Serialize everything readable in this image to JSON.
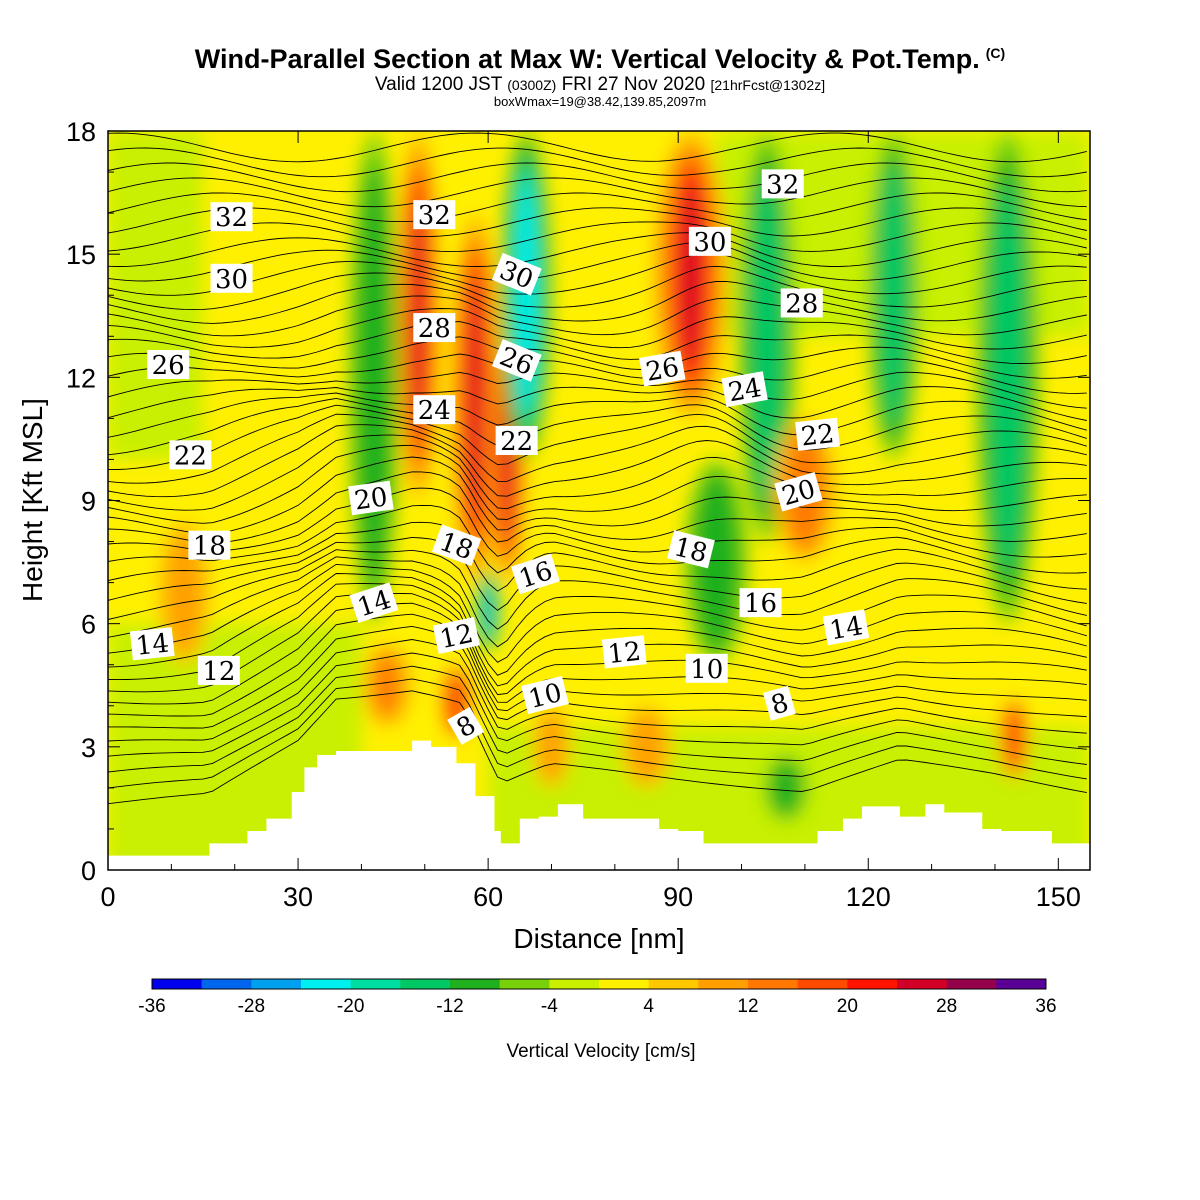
{
  "header": {
    "title": "Wind-Parallel Section at Max W: Vertical Velocity & Pot.Temp.",
    "copyright": "(C)",
    "valid_main": "Valid 1200 JST",
    "valid_utc": "(0300Z)",
    "valid_date": "FRI 27 Nov 2020",
    "forecast": "[21hrFcst@1302z]",
    "box_note": "boxWmax=19@38.42,139.85,2097m"
  },
  "chart_data": {
    "type": "heatmap",
    "title": "Wind-Parallel Section at Max W: Vertical Velocity & Pot.Temp.",
    "xlabel": "Distance [nm]",
    "ylabel": "Height [Kft MSL]",
    "xlim": [
      0,
      155
    ],
    "ylim": [
      0,
      18
    ],
    "xticks": [
      0,
      30,
      60,
      90,
      120,
      150
    ],
    "yticks": [
      0,
      3,
      6,
      9,
      12,
      15,
      18
    ],
    "colorbar": {
      "label": "Vertical Velocity [cm/s]",
      "tick_labels": [
        "-36",
        "-28",
        "-20",
        "-12",
        "-4",
        "4",
        "12",
        "20",
        "28",
        "36"
      ],
      "levels": [
        -36,
        -32,
        -28,
        -24,
        -20,
        -16,
        -12,
        -8,
        -4,
        0,
        4,
        8,
        12,
        16,
        20,
        24,
        28,
        32,
        36
      ],
      "colors": [
        "#0000ee",
        "#0066ee",
        "#00a0f0",
        "#00f0f0",
        "#00dca0",
        "#00c864",
        "#1fb01f",
        "#78d20a",
        "#c8f000",
        "#fff000",
        "#ffc800",
        "#ffa000",
        "#ff7800",
        "#ff4b00",
        "#ff1400",
        "#d20028",
        "#96004b",
        "#5a0096"
      ]
    },
    "velocity_features": [
      {
        "x": 49,
        "y0": 9,
        "y1": 18,
        "w": 3.5,
        "value": 26
      },
      {
        "x": 58,
        "y0": 7,
        "y1": 16,
        "w": 4,
        "value": 28
      },
      {
        "x": 63,
        "y0": 7,
        "y1": 13,
        "w": 3,
        "value": 24
      },
      {
        "x": 92,
        "y0": 11,
        "y1": 18,
        "w": 6,
        "value": 30
      },
      {
        "x": 42,
        "y0": 6,
        "y1": 18,
        "w": 4,
        "value": -12
      },
      {
        "x": 66,
        "y0": 10,
        "y1": 18,
        "w": 4,
        "value": -24
      },
      {
        "x": 104,
        "y0": 8,
        "y1": 18,
        "w": 4.5,
        "value": -14
      },
      {
        "x": 124,
        "y0": 10,
        "y1": 18,
        "w": 4,
        "value": -13
      },
      {
        "x": 142,
        "y0": 6,
        "y1": 18,
        "w": 5,
        "value": -16
      },
      {
        "x": 60,
        "y0": 5.3,
        "y1": 7.3,
        "w": 1.8,
        "value": -28
      },
      {
        "x": 96,
        "y0": 5,
        "y1": 10,
        "w": 5,
        "value": -11
      },
      {
        "x": 110,
        "y0": 7.5,
        "y1": 11,
        "w": 5,
        "value": 15
      },
      {
        "x": 12,
        "y0": 5,
        "y1": 8.5,
        "w": 4,
        "value": 10
      },
      {
        "x": 55,
        "y0": 3.2,
        "y1": 5,
        "w": 2.5,
        "value": 22
      },
      {
        "x": 44,
        "y0": 3.5,
        "y1": 5.5,
        "w": 4,
        "value": 12
      },
      {
        "x": 143,
        "y0": 2.2,
        "y1": 4.2,
        "w": 2.5,
        "value": 20
      },
      {
        "x": 107,
        "y0": 1.2,
        "y1": 2.8,
        "w": 3.5,
        "value": -10
      },
      {
        "x": 85,
        "y0": 2,
        "y1": 4,
        "w": 4,
        "value": 10
      },
      {
        "x": 70,
        "y0": 2,
        "y1": 4,
        "w": 3,
        "value": 10
      }
    ],
    "terrain_x": [
      0,
      16,
      16,
      22,
      22,
      25,
      25,
      29,
      29,
      31,
      31,
      33,
      33,
      36,
      36,
      48,
      48,
      51,
      51,
      55,
      55,
      58,
      58,
      61,
      61,
      62,
      62,
      64,
      64,
      65,
      65,
      68,
      68,
      71,
      71,
      75,
      75,
      87,
      87,
      90,
      90,
      94,
      94,
      100,
      100,
      112,
      112,
      116,
      116,
      119,
      119,
      125,
      125,
      129,
      129,
      132,
      132,
      138,
      138,
      141,
      141,
      149,
      149,
      155
    ],
    "terrain_y": [
      0.35,
      0.35,
      0.65,
      0.65,
      0.95,
      0.95,
      1.25,
      1.25,
      1.9,
      1.9,
      2.5,
      2.5,
      2.8,
      2.8,
      2.9,
      2.9,
      3.15,
      3.15,
      3.0,
      3.0,
      2.6,
      2.6,
      1.8,
      1.8,
      0.95,
      0.95,
      0.65,
      0.65,
      0.65,
      0.65,
      1.25,
      1.25,
      1.3,
      1.3,
      1.6,
      1.6,
      1.25,
      1.25,
      1.0,
      1.0,
      0.95,
      0.95,
      0.65,
      0.65,
      0.65,
      0.65,
      0.95,
      0.95,
      1.25,
      1.25,
      1.55,
      1.55,
      1.3,
      1.3,
      1.6,
      1.6,
      1.4,
      1.4,
      1.0,
      1.0,
      0.95,
      0.95,
      0.65,
      0.65
    ],
    "potential_temperature_labels": [
      {
        "text": "32",
        "x": 19.5,
        "y": 15.9,
        "rot": 0
      },
      {
        "text": "30",
        "x": 19.5,
        "y": 14.4,
        "rot": 0
      },
      {
        "text": "26",
        "x": 9.5,
        "y": 12.3,
        "rot": 0
      },
      {
        "text": "22",
        "x": 13,
        "y": 10.1,
        "rot": 0
      },
      {
        "text": "18",
        "x": 16,
        "y": 7.9,
        "rot": 0
      },
      {
        "text": "14",
        "x": 7,
        "y": 5.5,
        "rot": -6
      },
      {
        "text": "12",
        "x": 17.5,
        "y": 4.85,
        "rot": 0
      },
      {
        "text": "32",
        "x": 51.5,
        "y": 15.95,
        "rot": 0
      },
      {
        "text": "28",
        "x": 51.5,
        "y": 13.2,
        "rot": 0
      },
      {
        "text": "24",
        "x": 51.5,
        "y": 11.2,
        "rot": 0
      },
      {
        "text": "20",
        "x": 41.5,
        "y": 9.05,
        "rot": -8
      },
      {
        "text": "18",
        "x": 55,
        "y": 7.9,
        "rot": 20
      },
      {
        "text": "14",
        "x": 42,
        "y": 6.5,
        "rot": -18
      },
      {
        "text": "12",
        "x": 55,
        "y": 5.7,
        "rot": -12
      },
      {
        "text": "8",
        "x": 56.5,
        "y": 3.5,
        "rot": -30
      },
      {
        "text": "30",
        "x": 64.5,
        "y": 14.5,
        "rot": 22
      },
      {
        "text": "26",
        "x": 64.5,
        "y": 12.4,
        "rot": 22
      },
      {
        "text": "22",
        "x": 64.5,
        "y": 10.45,
        "rot": 0
      },
      {
        "text": "16",
        "x": 67.5,
        "y": 7.2,
        "rot": -18
      },
      {
        "text": "10",
        "x": 69,
        "y": 4.25,
        "rot": -14
      },
      {
        "text": "12",
        "x": 81.5,
        "y": 5.3,
        "rot": -6
      },
      {
        "text": "26",
        "x": 87.5,
        "y": 12.2,
        "rot": -10
      },
      {
        "text": "30",
        "x": 95,
        "y": 15.3,
        "rot": 0
      },
      {
        "text": "18",
        "x": 92,
        "y": 7.8,
        "rot": 14
      },
      {
        "text": "10",
        "x": 94.5,
        "y": 4.9,
        "rot": 0
      },
      {
        "text": "32",
        "x": 106.5,
        "y": 16.7,
        "rot": 0
      },
      {
        "text": "28",
        "x": 109.5,
        "y": 13.8,
        "rot": 0
      },
      {
        "text": "24",
        "x": 100.5,
        "y": 11.7,
        "rot": -10
      },
      {
        "text": "22",
        "x": 112,
        "y": 10.6,
        "rot": -6
      },
      {
        "text": "20",
        "x": 109,
        "y": 9.2,
        "rot": -16
      },
      {
        "text": "16",
        "x": 103,
        "y": 6.5,
        "rot": 0
      },
      {
        "text": "14",
        "x": 116.5,
        "y": 5.9,
        "rot": -10
      },
      {
        "text": "8",
        "x": 106,
        "y": 4.05,
        "rot": -16
      }
    ]
  }
}
